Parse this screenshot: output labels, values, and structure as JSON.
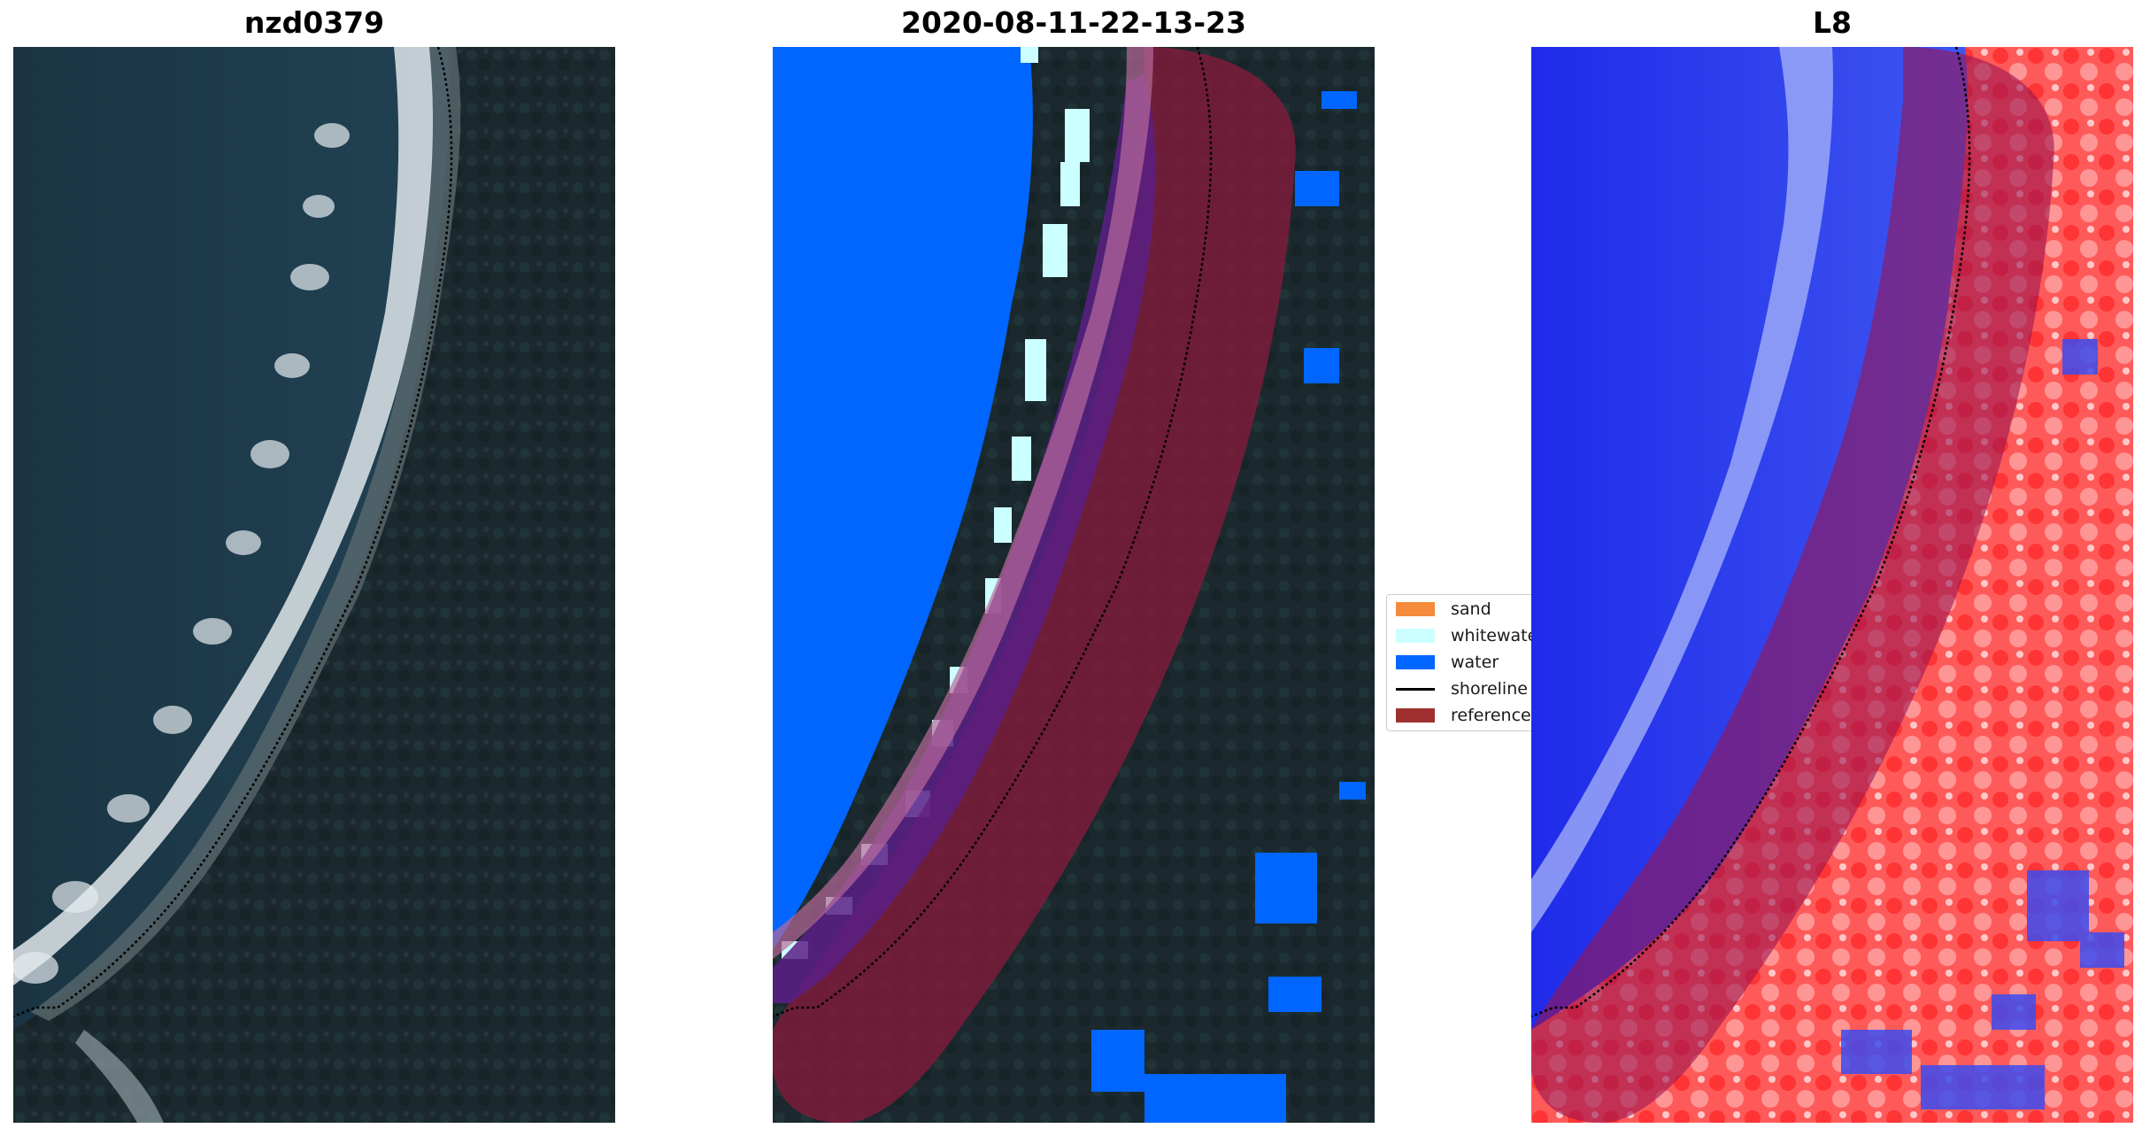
{
  "panels": [
    {
      "title": "nzd0379"
    },
    {
      "title": "2020-08-11-22-13-23"
    },
    {
      "title": "L8"
    }
  ],
  "legend": {
    "items": [
      {
        "label": "sand",
        "color": "#f58b3c",
        "kind": "patch"
      },
      {
        "label": "whitewater",
        "color": "#ccffff",
        "kind": "patch"
      },
      {
        "label": "water",
        "color": "#0066ff",
        "kind": "patch"
      },
      {
        "label": "shoreline",
        "color": "#000000",
        "kind": "line"
      },
      {
        "label": "reference",
        "color": "#a03030",
        "kind": "patch"
      }
    ]
  },
  "colors": {
    "ocean": "#1d3a4a",
    "land": "#1c2b30",
    "surf": "#dfe6ea",
    "water_class": "#0066ff",
    "whitewater_class": "#ccffff",
    "reference_overlay": "#8b1a3e",
    "index_blue": "#2233ee",
    "index_red": "#ff2020"
  }
}
